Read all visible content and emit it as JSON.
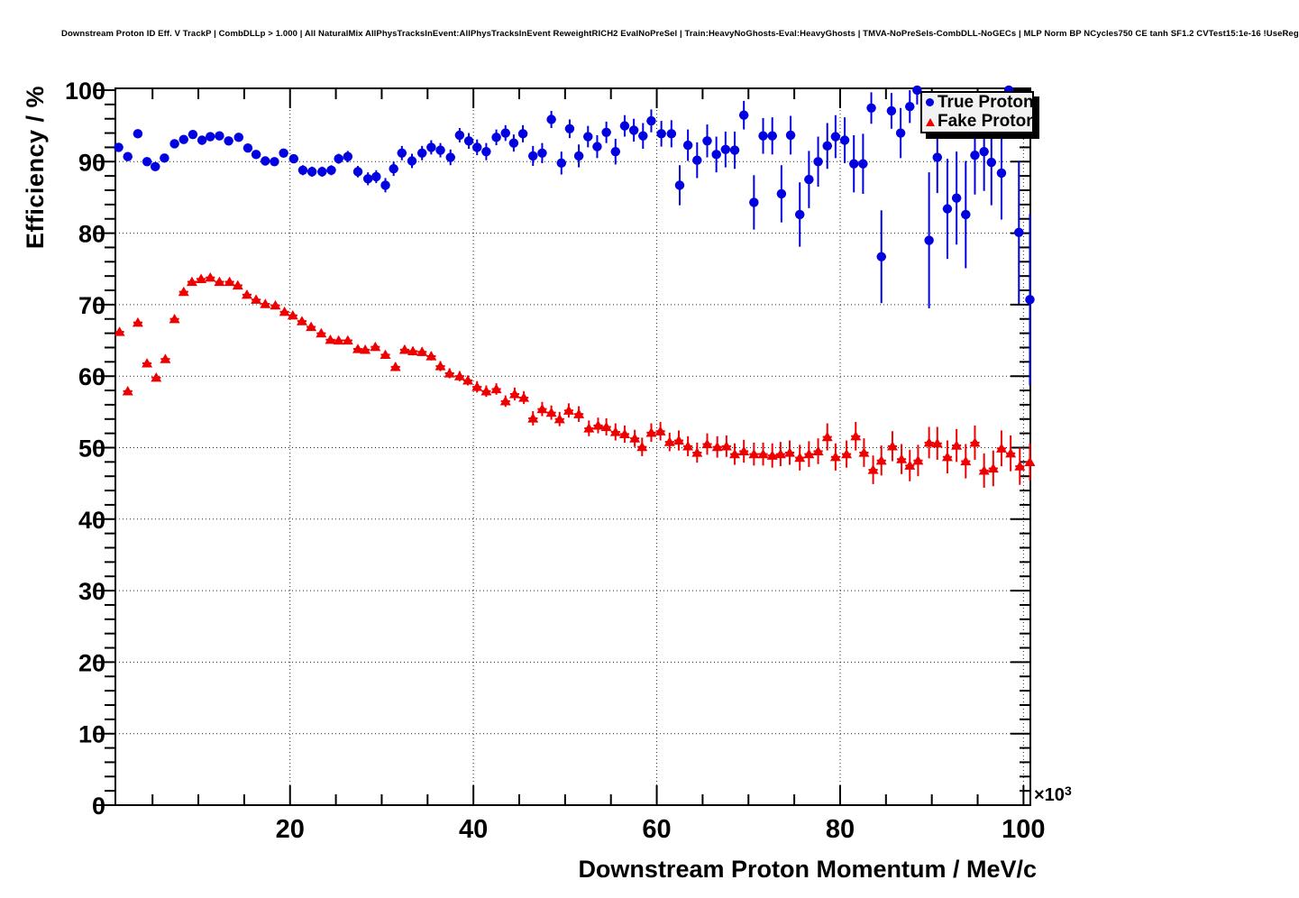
{
  "chart_data": {
    "type": "scatter",
    "title": "Downstream Proton ID Eff. V TrackP | CombDLLp > 1.000 | All NaturalMix AllPhysTracksInEvent:AllPhysTracksInEvent ReweightRICH2 EvalNoPreSel | Train:HeavyNoGhosts-Eval:HeavyGhosts | TMVA-NoPreSels-CombDLL-NoGECs | MLP Norm BP NCycles750 CE tanh SF1.2 CVTest15:1e-16 !UseReg",
    "xlabel": "Downstream Proton Momentum / MeV/c",
    "ylabel": "Efficiency / %",
    "x_axis_multiplier": {
      "base": "×10",
      "exp": "3"
    },
    "xlim": [
      0.95,
      100.75
    ],
    "ylim": [
      0,
      100.25
    ],
    "x_ticks": [
      20,
      40,
      60,
      80,
      100
    ],
    "x_minor_step": 5,
    "y_ticks": [
      0,
      10,
      20,
      30,
      40,
      50,
      60,
      70,
      80,
      90,
      100
    ],
    "y_minor_step": 2,
    "grid": {
      "x": [
        20,
        40,
        60,
        80,
        100
      ],
      "y": [
        10,
        20,
        30,
        40,
        50,
        60,
        70,
        80,
        90
      ]
    },
    "x_bin_halfwidth": 0.5,
    "grid_style": "dotted",
    "legend_position": "top-right",
    "series": [
      {
        "name": "True Proton",
        "marker": "circle",
        "color": "#0000e0",
        "points_format": [
          "momentum_1e3_MeVc",
          "efficiency_pct",
          "y_error_pct"
        ],
        "points": [
          [
            1.3,
            92.0,
            0.4
          ],
          [
            2.3,
            90.7,
            0.5
          ],
          [
            3.4,
            93.9,
            0.5
          ],
          [
            4.4,
            90.0,
            0.5
          ],
          [
            5.3,
            89.3,
            0.6
          ],
          [
            6.3,
            90.5,
            0.6
          ],
          [
            7.4,
            92.5,
            0.6
          ],
          [
            8.4,
            93.1,
            0.5
          ],
          [
            9.4,
            93.8,
            0.5
          ],
          [
            10.4,
            93.0,
            0.5
          ],
          [
            11.3,
            93.5,
            0.5
          ],
          [
            12.3,
            93.6,
            0.5
          ],
          [
            13.3,
            92.9,
            0.5
          ],
          [
            14.4,
            93.4,
            0.5
          ],
          [
            15.4,
            91.9,
            0.5
          ],
          [
            16.3,
            91.0,
            0.5
          ],
          [
            17.3,
            90.1,
            0.5
          ],
          [
            18.3,
            90.0,
            0.6
          ],
          [
            19.3,
            91.2,
            0.6
          ],
          [
            20.4,
            90.4,
            0.6
          ],
          [
            21.4,
            88.8,
            0.7
          ],
          [
            22.4,
            88.6,
            0.7
          ],
          [
            23.5,
            88.6,
            0.7
          ],
          [
            24.5,
            88.8,
            0.7
          ],
          [
            25.3,
            90.4,
            0.7
          ],
          [
            26.3,
            90.7,
            0.8
          ],
          [
            27.4,
            88.6,
            0.8
          ],
          [
            28.5,
            87.6,
            0.9
          ],
          [
            29.4,
            87.9,
            0.9
          ],
          [
            30.4,
            86.7,
            1.0
          ],
          [
            31.3,
            89.0,
            1.0
          ],
          [
            32.2,
            91.2,
            1.0
          ],
          [
            33.3,
            90.1,
            1.0
          ],
          [
            34.4,
            91.2,
            1.0
          ],
          [
            35.4,
            92.0,
            1.0
          ],
          [
            36.4,
            91.6,
            1.0
          ],
          [
            37.5,
            90.6,
            1.1
          ],
          [
            38.5,
            93.7,
            1.0
          ],
          [
            39.5,
            92.9,
            1.1
          ],
          [
            40.4,
            92.0,
            1.1
          ],
          [
            41.4,
            91.4,
            1.2
          ],
          [
            42.5,
            93.4,
            1.1
          ],
          [
            43.5,
            94.0,
            1.1
          ],
          [
            44.4,
            92.6,
            1.2
          ],
          [
            45.4,
            93.9,
            1.2
          ],
          [
            46.5,
            90.8,
            1.4
          ],
          [
            47.5,
            91.2,
            1.4
          ],
          [
            48.5,
            95.9,
            1.2
          ],
          [
            49.6,
            89.8,
            1.6
          ],
          [
            50.5,
            94.6,
            1.3
          ],
          [
            51.5,
            90.8,
            1.6
          ],
          [
            52.5,
            93.5,
            1.5
          ],
          [
            53.5,
            92.1,
            1.6
          ],
          [
            54.5,
            94.1,
            1.5
          ],
          [
            55.5,
            91.4,
            1.8
          ],
          [
            56.5,
            95.0,
            1.5
          ],
          [
            57.5,
            94.4,
            1.6
          ],
          [
            58.5,
            93.6,
            1.8
          ],
          [
            59.4,
            95.7,
            1.6
          ],
          [
            60.5,
            93.9,
            1.8
          ],
          [
            61.6,
            93.9,
            1.9
          ],
          [
            62.5,
            86.7,
            2.8
          ],
          [
            63.4,
            92.3,
            2.2
          ],
          [
            64.4,
            90.2,
            2.5
          ],
          [
            65.5,
            92.9,
            2.3
          ],
          [
            66.5,
            91.0,
            2.5
          ],
          [
            67.5,
            91.7,
            2.5
          ],
          [
            68.5,
            91.6,
            2.6
          ],
          [
            69.5,
            96.5,
            2.0
          ],
          [
            70.6,
            84.3,
            3.8
          ],
          [
            71.6,
            93.6,
            2.5
          ],
          [
            72.6,
            93.6,
            2.6
          ],
          [
            73.6,
            85.5,
            4.0
          ],
          [
            74.6,
            93.7,
            2.7
          ],
          [
            75.6,
            82.6,
            4.5
          ],
          [
            76.6,
            87.5,
            4.0
          ],
          [
            77.6,
            90.0,
            3.5
          ],
          [
            78.6,
            92.2,
            3.2
          ],
          [
            79.5,
            93.5,
            3.0
          ],
          [
            80.5,
            93.0,
            3.2
          ],
          [
            81.5,
            89.7,
            4.0
          ],
          [
            82.5,
            89.7,
            4.2
          ],
          [
            83.4,
            97.5,
            2.2
          ],
          [
            84.5,
            76.7,
            6.5
          ],
          [
            85.6,
            97.1,
            2.5
          ],
          [
            86.6,
            94.0,
            3.5
          ],
          [
            87.6,
            97.7,
            2.3
          ],
          [
            88.4,
            100.0,
            2.0
          ],
          [
            89.7,
            79.0,
            9.5
          ],
          [
            90.6,
            90.6,
            5.0
          ],
          [
            91.7,
            83.4,
            7.0
          ],
          [
            92.7,
            84.9,
            6.5
          ],
          [
            93.7,
            82.6,
            7.5
          ],
          [
            94.7,
            90.9,
            5.5
          ],
          [
            95.7,
            91.4,
            5.5
          ],
          [
            96.5,
            89.9,
            6.0
          ],
          [
            97.6,
            88.4,
            6.5
          ],
          [
            98.4,
            100.0,
            3.0
          ],
          [
            99.5,
            80.1,
            10.0
          ],
          [
            100.7,
            70.7,
            12.0
          ]
        ]
      },
      {
        "name": "Fake Proton",
        "marker": "triangle",
        "color": "#ee0000",
        "points_format": [
          "momentum_1e3_MeVc",
          "efficiency_pct",
          "y_error_pct"
        ],
        "points": [
          [
            1.4,
            66.2,
            0.5
          ],
          [
            2.3,
            57.9,
            0.5
          ],
          [
            3.4,
            67.5,
            0.5
          ],
          [
            4.4,
            61.8,
            0.4
          ],
          [
            5.4,
            59.8,
            0.4
          ],
          [
            6.4,
            62.4,
            0.4
          ],
          [
            7.4,
            68.0,
            0.4
          ],
          [
            8.4,
            71.8,
            0.4
          ],
          [
            9.3,
            73.2,
            0.4
          ],
          [
            10.3,
            73.6,
            0.3
          ],
          [
            11.3,
            73.8,
            0.3
          ],
          [
            12.3,
            73.2,
            0.3
          ],
          [
            13.4,
            73.2,
            0.3
          ],
          [
            14.3,
            72.7,
            0.3
          ],
          [
            15.3,
            71.4,
            0.3
          ],
          [
            16.3,
            70.7,
            0.3
          ],
          [
            17.3,
            70.1,
            0.3
          ],
          [
            18.4,
            69.9,
            0.3
          ],
          [
            19.4,
            69.0,
            0.3
          ],
          [
            20.3,
            68.5,
            0.4
          ],
          [
            21.3,
            67.7,
            0.4
          ],
          [
            22.3,
            66.9,
            0.4
          ],
          [
            23.4,
            66.0,
            0.4
          ],
          [
            24.4,
            65.1,
            0.4
          ],
          [
            25.3,
            65.0,
            0.4
          ],
          [
            26.3,
            65.0,
            0.5
          ],
          [
            27.4,
            63.8,
            0.5
          ],
          [
            28.2,
            63.7,
            0.5
          ],
          [
            29.3,
            64.1,
            0.5
          ],
          [
            30.4,
            63.0,
            0.5
          ],
          [
            31.5,
            61.3,
            0.6
          ],
          [
            32.5,
            63.7,
            0.6
          ],
          [
            33.4,
            63.5,
            0.6
          ],
          [
            34.4,
            63.4,
            0.6
          ],
          [
            35.4,
            62.8,
            0.6
          ],
          [
            36.4,
            61.4,
            0.7
          ],
          [
            37.4,
            60.4,
            0.7
          ],
          [
            38.5,
            60.0,
            0.7
          ],
          [
            39.4,
            59.4,
            0.7
          ],
          [
            40.4,
            58.5,
            0.8
          ],
          [
            41.4,
            57.9,
            0.8
          ],
          [
            42.5,
            58.2,
            0.8
          ],
          [
            43.5,
            56.5,
            0.8
          ],
          [
            44.5,
            57.5,
            0.9
          ],
          [
            45.5,
            57.0,
            0.9
          ],
          [
            46.5,
            54.1,
            1.0
          ],
          [
            47.5,
            55.4,
            1.0
          ],
          [
            48.5,
            54.9,
            1.0
          ],
          [
            49.4,
            54.0,
            1.0
          ],
          [
            50.4,
            55.2,
            1.0
          ],
          [
            51.5,
            54.7,
            1.1
          ],
          [
            52.6,
            52.7,
            1.1
          ],
          [
            53.6,
            53.1,
            1.1
          ],
          [
            54.5,
            52.9,
            1.2
          ],
          [
            55.5,
            52.2,
            1.2
          ],
          [
            56.5,
            51.9,
            1.2
          ],
          [
            57.6,
            51.3,
            1.2
          ],
          [
            58.4,
            50.1,
            1.3
          ],
          [
            59.4,
            52.1,
            1.3
          ],
          [
            60.4,
            52.3,
            1.3
          ],
          [
            61.4,
            50.8,
            1.3
          ],
          [
            62.4,
            51.0,
            1.4
          ],
          [
            63.4,
            50.2,
            1.4
          ],
          [
            64.4,
            49.3,
            1.4
          ],
          [
            65.5,
            50.5,
            1.5
          ],
          [
            66.6,
            50.1,
            1.5
          ],
          [
            67.6,
            50.2,
            1.5
          ],
          [
            68.5,
            49.1,
            1.5
          ],
          [
            69.5,
            49.5,
            1.6
          ],
          [
            70.6,
            49.1,
            1.6
          ],
          [
            71.6,
            49.1,
            1.6
          ],
          [
            72.6,
            48.9,
            1.7
          ],
          [
            73.5,
            49.1,
            1.7
          ],
          [
            74.5,
            49.3,
            1.7
          ],
          [
            75.6,
            48.6,
            1.8
          ],
          [
            76.6,
            49.1,
            1.8
          ],
          [
            77.6,
            49.5,
            1.8
          ],
          [
            78.6,
            51.5,
            1.9
          ],
          [
            79.5,
            48.7,
            1.9
          ],
          [
            80.7,
            49.1,
            1.9
          ],
          [
            81.7,
            51.6,
            2.0
          ],
          [
            82.6,
            49.3,
            2.0
          ],
          [
            83.6,
            46.9,
            2.0
          ],
          [
            84.5,
            48.2,
            2.1
          ],
          [
            85.7,
            50.2,
            2.1
          ],
          [
            86.7,
            48.4,
            2.1
          ],
          [
            87.6,
            47.5,
            2.2
          ],
          [
            88.5,
            48.2,
            2.2
          ],
          [
            89.7,
            50.7,
            2.2
          ],
          [
            90.6,
            50.6,
            2.3
          ],
          [
            91.7,
            48.7,
            2.3
          ],
          [
            92.7,
            50.3,
            2.3
          ],
          [
            93.7,
            48.1,
            2.4
          ],
          [
            94.7,
            50.7,
            2.4
          ],
          [
            95.7,
            46.8,
            2.4
          ],
          [
            96.7,
            47.1,
            2.5
          ],
          [
            97.6,
            49.9,
            2.5
          ],
          [
            98.6,
            49.2,
            2.5
          ],
          [
            99.6,
            47.4,
            2.6
          ],
          [
            100.7,
            48.0,
            2.6
          ]
        ]
      }
    ]
  }
}
